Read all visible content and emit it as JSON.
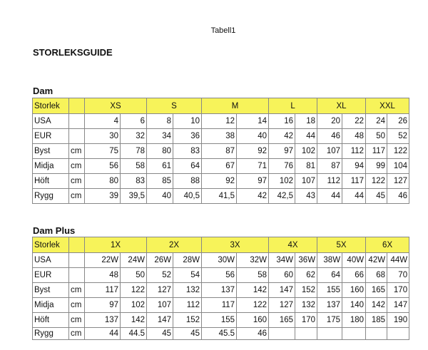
{
  "sheet_title": "Tabell1",
  "title": "STORLEKSGUIDE",
  "colors": {
    "header_bg": "#f7f35a"
  },
  "tables": [
    {
      "name": "Dam",
      "header_label": "Storlek",
      "sizes": [
        "XS",
        "S",
        "M",
        "L",
        "XL",
        "XXL"
      ],
      "rows": [
        {
          "label": "USA",
          "unit": "",
          "values": [
            "4",
            "6",
            "8",
            "10",
            "12",
            "14",
            "16",
            "18",
            "20",
            "22",
            "24",
            "26"
          ]
        },
        {
          "label": "EUR",
          "unit": "",
          "values": [
            "30",
            "32",
            "34",
            "36",
            "38",
            "40",
            "42",
            "44",
            "46",
            "48",
            "50",
            "52"
          ]
        },
        {
          "label": "Byst",
          "unit": "cm",
          "values": [
            "75",
            "78",
            "80",
            "83",
            "87",
            "92",
            "97",
            "102",
            "107",
            "112",
            "117",
            "122"
          ]
        },
        {
          "label": "Midja",
          "unit": "cm",
          "values": [
            "56",
            "58",
            "61",
            "64",
            "67",
            "71",
            "76",
            "81",
            "87",
            "94",
            "99",
            "104"
          ]
        },
        {
          "label": "Höft",
          "unit": "cm",
          "values": [
            "80",
            "83",
            "85",
            "88",
            "92",
            "97",
            "102",
            "107",
            "112",
            "117",
            "122",
            "127"
          ]
        },
        {
          "label": "Rygg",
          "unit": "cm",
          "values": [
            "39",
            "39,5",
            "40",
            "40,5",
            "41,5",
            "42",
            "42,5",
            "43",
            "44",
            "44",
            "45",
            "46"
          ]
        }
      ]
    },
    {
      "name": "Dam Plus",
      "header_label": "Storlek",
      "sizes": [
        "1X",
        "2X",
        "3X",
        "4X",
        "5X",
        "6X"
      ],
      "rows": [
        {
          "label": "USA",
          "unit": "",
          "values": [
            "22W",
            "24W",
            "26W",
            "28W",
            "30W",
            "32W",
            "34W",
            "36W",
            "38W",
            "40W",
            "42W",
            "44W"
          ]
        },
        {
          "label": "EUR",
          "unit": "",
          "values": [
            "48",
            "50",
            "52",
            "54",
            "56",
            "58",
            "60",
            "62",
            "64",
            "66",
            "68",
            "70"
          ]
        },
        {
          "label": "Byst",
          "unit": "cm",
          "values": [
            "117",
            "122",
            "127",
            "132",
            "137",
            "142",
            "147",
            "152",
            "155",
            "160",
            "165",
            "170"
          ]
        },
        {
          "label": "Midja",
          "unit": "cm",
          "values": [
            "97",
            "102",
            "107",
            "112",
            "117",
            "122",
            "127",
            "132",
            "137",
            "140",
            "142",
            "147"
          ]
        },
        {
          "label": "Höft",
          "unit": "cm",
          "values": [
            "137",
            "142",
            "147",
            "152",
            "155",
            "160",
            "165",
            "170",
            "175",
            "180",
            "185",
            "190"
          ]
        },
        {
          "label": "Rygg",
          "unit": "cm",
          "values": [
            "44",
            "44.5",
            "45",
            "45",
            "45.5",
            "46",
            "",
            "",
            "",
            "",
            "",
            ""
          ]
        }
      ]
    }
  ]
}
